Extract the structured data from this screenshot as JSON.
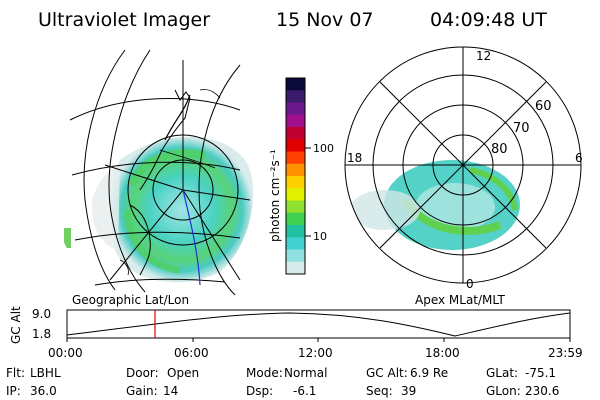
{
  "header": {
    "instrument": "Ultraviolet Imager",
    "date": "15 Nov 07",
    "time": "04:09:48 UT"
  },
  "colorbar": {
    "label": "photon cm⁻²s⁻¹",
    "ticks": [
      "100",
      "10"
    ],
    "colors": [
      "#0a0a3a",
      "#3a1a6a",
      "#6a1a8a",
      "#a0108a",
      "#c00030",
      "#e00000",
      "#ff4000",
      "#ff9000",
      "#ffd000",
      "#e0f000",
      "#90e030",
      "#40d050",
      "#20c0a0",
      "#40d0d0",
      "#90e0e0",
      "#d8eaea"
    ]
  },
  "geo_panel": {
    "label": "Geographic Lat/Lon"
  },
  "apex_panel": {
    "label": "Apex MLat/MLT",
    "mlt_labels": {
      "top": "12",
      "left": "18",
      "right": "6",
      "bottom": "0"
    },
    "lat_labels": [
      "60",
      "70",
      "80"
    ]
  },
  "timeline": {
    "ylabel": "GC Alt",
    "y_ticks": [
      "9.0",
      "1.8"
    ],
    "x_ticks": [
      "00:00",
      "06:00",
      "12:00",
      "18:00",
      "23:59"
    ],
    "current_time_fraction": 0.175
  },
  "status": {
    "flt_label": "Flt:",
    "flt_value": "LBHL",
    "ip_label": "IP:",
    "ip_value": "36.0",
    "door_label": "Door:",
    "door_value": "Open",
    "gain_label": "Gain:",
    "gain_value": "14",
    "mode_label": "Mode:",
    "mode_value": "Normal",
    "dsp_label": "Dsp:",
    "dsp_value": "-6.1",
    "gcalt_label": "GC Alt:",
    "gcalt_value": "6.9 Re",
    "seq_label": "Seq:",
    "seq_value": "39",
    "glat_label": "GLat:",
    "glat_value": "-75.1",
    "glon_label": "GLon:",
    "glon_value": "230.6"
  }
}
